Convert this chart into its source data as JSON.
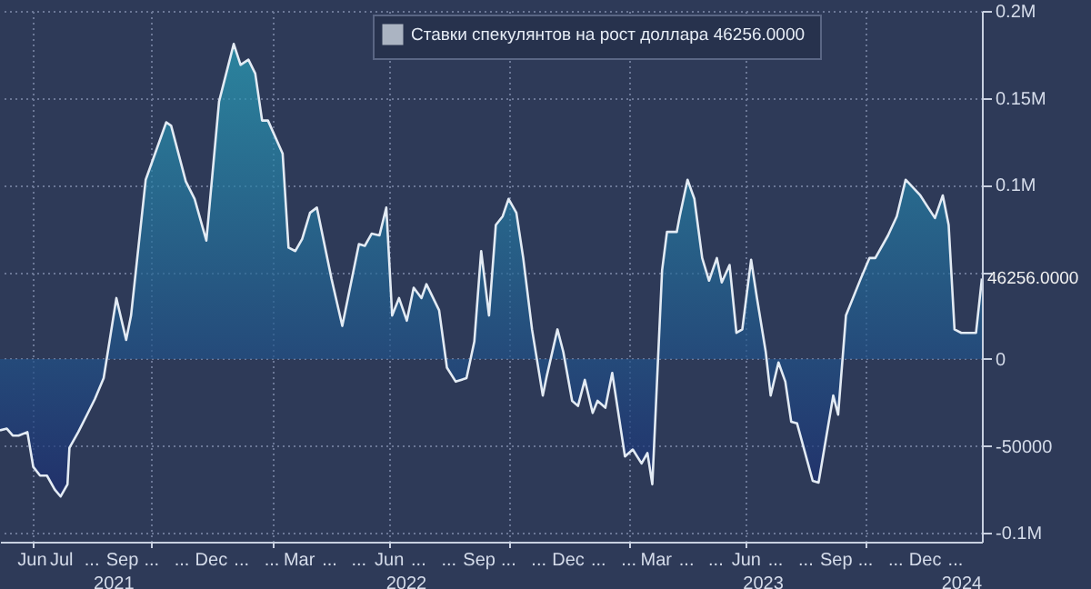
{
  "chart_data": {
    "type": "area",
    "legend": "top",
    "grid": true,
    "x": [
      "2021-05-13",
      "2021-05-20",
      "2021-05-26",
      "2021-06-01",
      "2021-06-10",
      "2021-06-16",
      "2021-06-23",
      "2021-06-30",
      "2021-07-08",
      "2021-07-14",
      "2021-07-21",
      "2021-07-23",
      "2021-08-01",
      "2021-08-10",
      "2021-08-18",
      "2021-08-27",
      "2021-09-09",
      "2021-09-19",
      "2021-09-24",
      "2021-10-09",
      "2021-10-30",
      "2021-11-04",
      "2021-11-19",
      "2021-11-28",
      "2021-12-10",
      "2021-12-23",
      "2022-01-07",
      "2022-01-14",
      "2022-01-22",
      "2022-01-29",
      "2022-02-05",
      "2022-02-11",
      "2022-02-26",
      "2022-03-04",
      "2022-03-11",
      "2022-03-18",
      "2022-03-26",
      "2022-04-02",
      "2022-04-17",
      "2022-04-28",
      "2022-05-15",
      "2022-05-21",
      "2022-05-28",
      "2022-06-05",
      "2022-06-12",
      "2022-06-18",
      "2022-06-25",
      "2022-07-03",
      "2022-07-10",
      "2022-07-18",
      "2022-07-23",
      "2022-08-05",
      "2022-08-13",
      "2022-08-22",
      "2022-09-02",
      "2022-09-10",
      "2022-09-17",
      "2022-09-25",
      "2022-10-02",
      "2022-10-09",
      "2022-10-15",
      "2022-10-23",
      "2022-10-30",
      "2022-11-08",
      "2022-11-19",
      "2022-11-23",
      "2022-12-04",
      "2022-12-10",
      "2022-12-19",
      "2022-12-25",
      "2023-01-01",
      "2023-01-09",
      "2023-01-14",
      "2023-01-22",
      "2023-01-29",
      "2023-02-11",
      "2023-02-19",
      "2023-02-28",
      "2023-03-06",
      "2023-03-11",
      "2023-03-21",
      "2023-03-26",
      "2023-04-05",
      "2023-04-08",
      "2023-04-16",
      "2023-04-23",
      "2023-05-01",
      "2023-05-08",
      "2023-05-16",
      "2023-05-21",
      "2023-05-29",
      "2023-06-05",
      "2023-06-11",
      "2023-06-20",
      "2023-06-26",
      "2023-07-05",
      "2023-07-10",
      "2023-07-18",
      "2023-07-25",
      "2023-07-31",
      "2023-08-06",
      "2023-08-22",
      "2023-08-28",
      "2023-09-12",
      "2023-09-17",
      "2023-09-25",
      "2023-10-10",
      "2023-10-19",
      "2023-10-25",
      "2023-11-07",
      "2023-11-16",
      "2023-11-25",
      "2023-12-10",
      "2023-12-25",
      "2024-01-02",
      "2024-01-08",
      "2024-01-14",
      "2024-01-21",
      "2024-02-05",
      "2024-02-11"
    ],
    "series": [
      {
        "name": "Ставки спекулянтов на рост доллара  46256.0000",
        "color": "#e3ebf4",
        "values": [
          -41000,
          -40000,
          -44000,
          -44000,
          -42000,
          -62000,
          -67000,
          -67000,
          -75000,
          -79000,
          -72000,
          -51000,
          -42000,
          -32000,
          -23000,
          -11000,
          35000,
          11000,
          25000,
          103000,
          136000,
          134000,
          102000,
          92000,
          68000,
          148000,
          181000,
          169000,
          172000,
          164000,
          137000,
          137000,
          118000,
          64000,
          62000,
          69000,
          84000,
          87000,
          46000,
          19000,
          66000,
          65000,
          72000,
          71000,
          87000,
          25000,
          35000,
          22000,
          41000,
          35000,
          43000,
          28000,
          -5000,
          -13000,
          -11000,
          10000,
          62000,
          25000,
          77000,
          82000,
          92000,
          84000,
          58000,
          17000,
          -21000,
          -10000,
          17000,
          4000,
          -24000,
          -27000,
          -12000,
          -31000,
          -24000,
          -28000,
          -8000,
          -56000,
          -52000,
          -60000,
          -54000,
          -72000,
          51000,
          73000,
          73000,
          82000,
          103000,
          92000,
          58000,
          45000,
          58000,
          44000,
          54000,
          15000,
          17000,
          57000,
          35000,
          4000,
          -21000,
          -2000,
          -13000,
          -36000,
          -37000,
          -70000,
          -71000,
          -21000,
          -32000,
          25000,
          46000,
          58000,
          58000,
          71000,
          82000,
          103000,
          94000,
          81000,
          94000,
          77000,
          17000,
          15000,
          15000,
          46256
        ]
      }
    ],
    "xlim": [
      "2021-05-13",
      "2024-02-11"
    ],
    "xticks": [
      {
        "value": "2021-06-15",
        "label": "Jun"
      },
      {
        "value": "2021-07-15",
        "label": "Jul"
      },
      {
        "value": "2021-08-15",
        "label": "..."
      },
      {
        "value": "2021-09-15",
        "label": "Sep"
      },
      {
        "value": "2021-10-15",
        "label": "..."
      },
      {
        "value": "2021-11-15",
        "label": "..."
      },
      {
        "value": "2021-12-15",
        "label": "Dec"
      },
      {
        "value": "2022-01-15",
        "label": "..."
      },
      {
        "value": "2022-02-15",
        "label": "..."
      },
      {
        "value": "2022-03-15",
        "label": "Mar"
      },
      {
        "value": "2022-04-15",
        "label": "..."
      },
      {
        "value": "2022-05-15",
        "label": "..."
      },
      {
        "value": "2022-06-15",
        "label": "Jun"
      },
      {
        "value": "2022-07-15",
        "label": "..."
      },
      {
        "value": "2022-08-15",
        "label": "..."
      },
      {
        "value": "2022-09-15",
        "label": "Sep"
      },
      {
        "value": "2022-10-15",
        "label": "..."
      },
      {
        "value": "2022-11-15",
        "label": "..."
      },
      {
        "value": "2022-12-15",
        "label": "Dec"
      },
      {
        "value": "2023-01-15",
        "label": "..."
      },
      {
        "value": "2023-02-15",
        "label": "..."
      },
      {
        "value": "2023-03-15",
        "label": "Mar"
      },
      {
        "value": "2023-04-15",
        "label": "..."
      },
      {
        "value": "2023-05-15",
        "label": "..."
      },
      {
        "value": "2023-06-15",
        "label": "Jun"
      },
      {
        "value": "2023-07-15",
        "label": "..."
      },
      {
        "value": "2023-08-15",
        "label": "..."
      },
      {
        "value": "2023-09-15",
        "label": "Sep"
      },
      {
        "value": "2023-10-15",
        "label": "..."
      },
      {
        "value": "2023-11-15",
        "label": "..."
      },
      {
        "value": "2023-12-15",
        "label": "Dec"
      },
      {
        "value": "2024-01-15",
        "label": "..."
      }
    ],
    "ylim": [
      -105000,
      200000
    ],
    "yticks": [
      {
        "value": -100000,
        "label": "-0.1M"
      },
      {
        "value": -50000,
        "label": "-50000"
      },
      0,
      {
        "value": 50000,
        "label": null
      },
      {
        "value": 100000,
        "label": "0.1M"
      },
      {
        "value": 150000,
        "label": "0.15M"
      },
      {
        "value": 200000,
        "label": "0.2M"
      }
    ],
    "annotations": [
      {
        "text": "46256.0000",
        "x": "2024-02-11",
        "y": 46256
      },
      "2021",
      "2022",
      "2023",
      "2024"
    ]
  }
}
